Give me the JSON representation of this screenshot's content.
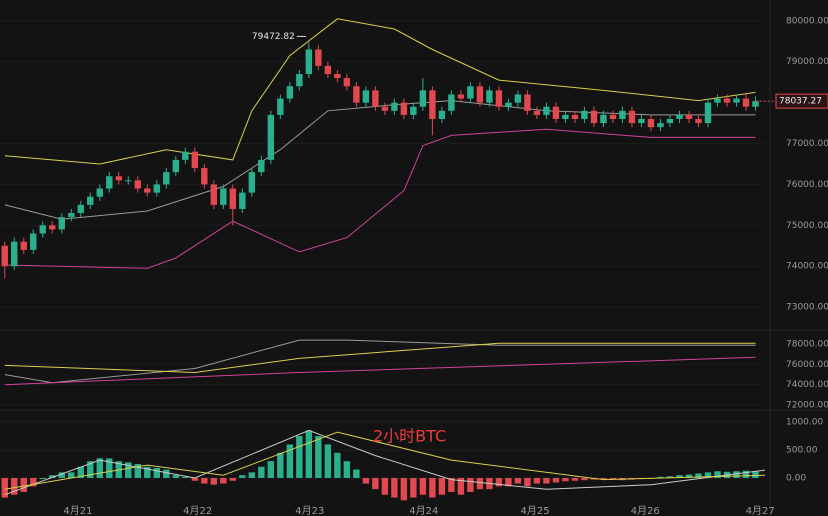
{
  "chart_data": [
    {
      "type": "candlestick",
      "xlim": [
        -0.5,
        80
      ],
      "ylim": [
        72440,
        80510
      ],
      "yticks": [
        {
          "value": 80000,
          "label": "80000.00"
        },
        {
          "value": 79000,
          "label": "79000.00"
        },
        {
          "value": 77000,
          "label": "77000.00"
        },
        {
          "value": 76000,
          "label": "76000.00"
        },
        {
          "value": 75000,
          "label": "75000.00"
        },
        {
          "value": 74000,
          "label": "74000.00"
        },
        {
          "value": 73000,
          "label": "73000.00"
        }
      ],
      "up_color": "#2bb08e",
      "down_color": "#e2484f",
      "open": [
        74500,
        74000,
        74600,
        74400,
        74800,
        75000,
        74900,
        75200,
        75300,
        75500,
        75700,
        75900,
        76200,
        76100,
        76100,
        75900,
        75800,
        76000,
        76300,
        76600,
        76800,
        76400,
        76000,
        75500,
        75900,
        75400,
        75800,
        76300,
        76600,
        77700,
        78100,
        78400,
        78700,
        79300,
        78900,
        78700,
        78600,
        78400,
        78000,
        78300,
        77900,
        77800,
        78000,
        77700,
        77900,
        78300,
        77600,
        77800,
        78200,
        78100,
        78400,
        78000,
        78300,
        77900,
        78000,
        78200,
        77800,
        77700,
        77900,
        77600,
        77700,
        77600,
        77800,
        77500,
        77700,
        77600,
        77800,
        77500,
        77600,
        77400,
        77500,
        77600,
        77700,
        77600,
        77500,
        78000,
        78100,
        78000,
        78100,
        77900
      ],
      "high": [
        74600,
        74700,
        74700,
        74900,
        75100,
        75100,
        75300,
        75400,
        75600,
        75800,
        76000,
        76300,
        76300,
        76200,
        76200,
        76000,
        76100,
        76400,
        76700,
        76900,
        76900,
        76500,
        76100,
        76000,
        76000,
        75900,
        76400,
        76700,
        77800,
        78200,
        78500,
        78800,
        79472.82,
        79400,
        79000,
        78800,
        78700,
        78500,
        78400,
        78400,
        78000,
        78100,
        78100,
        78000,
        78600,
        78400,
        77900,
        78300,
        78300,
        78500,
        78500,
        78400,
        78400,
        78100,
        78300,
        78300,
        77900,
        78000,
        78000,
        77800,
        77800,
        77900,
        77900,
        77800,
        77800,
        77900,
        77900,
        77700,
        77700,
        77600,
        77700,
        77800,
        77800,
        77700,
        78100,
        78200,
        78200,
        78200,
        78200,
        78150
      ],
      "low": [
        73700,
        73900,
        74300,
        74300,
        74700,
        74800,
        74800,
        75100,
        75200,
        75400,
        75600,
        75800,
        76000,
        76000,
        75800,
        75700,
        75700,
        75900,
        76200,
        76500,
        76300,
        75900,
        75400,
        75400,
        75000,
        75300,
        75700,
        76200,
        76500,
        77600,
        78000,
        78300,
        78600,
        78800,
        78600,
        78500,
        78300,
        77900,
        77900,
        77800,
        77700,
        77700,
        77600,
        77600,
        77800,
        77200,
        77500,
        77700,
        78000,
        78000,
        77900,
        77900,
        77800,
        77800,
        77900,
        77700,
        77600,
        77600,
        77500,
        77500,
        77500,
        77500,
        77400,
        77400,
        77500,
        77500,
        77400,
        77400,
        77300,
        77300,
        77400,
        77500,
        77500,
        77400,
        77400,
        77900,
        77900,
        77900,
        77800,
        77800
      ],
      "close": [
        74000,
        74600,
        74400,
        74800,
        75000,
        74900,
        75200,
        75300,
        75500,
        75700,
        75900,
        76200,
        76100,
        76100,
        75900,
        75800,
        76000,
        76300,
        76600,
        76800,
        76400,
        76000,
        75500,
        75900,
        75400,
        75800,
        76300,
        76600,
        77700,
        78100,
        78400,
        78700,
        79300,
        78900,
        78700,
        78600,
        78400,
        78000,
        78300,
        77900,
        77800,
        78000,
        77700,
        77900,
        78300,
        77600,
        77800,
        78200,
        78100,
        78400,
        78000,
        78300,
        77900,
        78000,
        78200,
        77800,
        77700,
        77900,
        77600,
        77700,
        77600,
        77800,
        77500,
        77700,
        77600,
        77800,
        77500,
        77600,
        77400,
        77500,
        77600,
        77700,
        77600,
        77500,
        78000,
        78100,
        78000,
        78100,
        77900,
        78037.27
      ],
      "series": [
        {
          "color": "#d8d24a",
          "x": [
            0,
            10,
            17,
            24,
            26,
            30,
            35,
            41,
            45,
            52,
            63,
            73,
            79
          ],
          "values": [
            76700,
            76500,
            76850,
            76600,
            77800,
            79150,
            80050,
            79800,
            79300,
            78550,
            78300,
            78050,
            78250
          ]
        },
        {
          "color": "#9a9a9a",
          "x": [
            0,
            6,
            15,
            23,
            29,
            34,
            41,
            47,
            57,
            68,
            79
          ],
          "values": [
            75500,
            75150,
            75350,
            75950,
            76850,
            77800,
            77950,
            78050,
            77800,
            77700,
            77700
          ]
        },
        {
          "color": "#d0449a",
          "x": [
            0,
            15,
            18,
            24,
            31,
            36,
            42,
            44,
            47,
            57,
            68,
            79
          ],
          "values": [
            74030,
            73950,
            74200,
            75100,
            74350,
            74700,
            75850,
            76950,
            77200,
            77350,
            77150,
            77150
          ]
        }
      ]
    },
    {
      "type": "line",
      "ylim": [
        71500,
        79400
      ],
      "yticks": [
        {
          "value": 78000,
          "label": "78000.00"
        },
        {
          "value": 76000,
          "label": "76000.00"
        },
        {
          "value": 74000,
          "label": "74000.00"
        },
        {
          "value": 72000,
          "label": "72000.00"
        }
      ],
      "series": [
        {
          "color": "#9a9a9a",
          "x": [
            0,
            5,
            20,
            31,
            36,
            52,
            79
          ],
          "values": [
            75000,
            74200,
            75600,
            78400,
            78400,
            77900,
            77900
          ]
        },
        {
          "color": "#d8d24a",
          "x": [
            0,
            20,
            31,
            52,
            79
          ],
          "values": [
            75900,
            75200,
            76600,
            78100,
            78100
          ]
        },
        {
          "color": "#d0449a",
          "x": [
            0,
            31,
            79
          ],
          "values": [
            74000,
            75200,
            76700
          ]
        }
      ]
    },
    {
      "type": "bar",
      "ylim": [
        -680,
        1215
      ],
      "yticks": [
        {
          "value": 1000,
          "label": "1000.00"
        },
        {
          "value": 500,
          "label": "500.00"
        },
        {
          "value": 0,
          "label": "0.00"
        }
      ],
      "xticks": [
        {
          "value": 7.7,
          "label": "4月21"
        },
        {
          "value": 20.3,
          "label": "4月22"
        },
        {
          "value": 32.1,
          "label": "4月23"
        },
        {
          "value": 44.1,
          "label": "4月24"
        },
        {
          "value": 55.8,
          "label": "4月25"
        },
        {
          "value": 67.4,
          "label": "4月26"
        },
        {
          "value": 79.5,
          "label": "4月27"
        }
      ],
      "annotation": "2小时BTC",
      "up_color": "#2bb08e",
      "down_color": "#e2484f",
      "values": [
        -350,
        -300,
        -250,
        -150,
        0,
        50,
        100,
        100,
        200,
        300,
        350,
        350,
        300,
        280,
        250,
        200,
        180,
        150,
        50,
        20,
        -50,
        -100,
        -120,
        -100,
        -50,
        50,
        100,
        200,
        300,
        450,
        600,
        750,
        850,
        750,
        600,
        450,
        300,
        150,
        -100,
        -200,
        -300,
        -350,
        -400,
        -350,
        -300,
        -350,
        -300,
        -250,
        -300,
        -250,
        -200,
        -200,
        -150,
        -150,
        -100,
        -150,
        -100,
        -100,
        -80,
        -60,
        -50,
        -40,
        -30,
        -20,
        -30,
        -40,
        -30,
        -20,
        -10,
        20,
        30,
        50,
        60,
        80,
        100,
        120,
        110,
        120,
        130,
        120
      ],
      "series": [
        {
          "color": "#cccccc",
          "x": [
            0,
            10,
            20,
            32,
            39,
            47,
            57,
            68,
            80
          ],
          "values": [
            -300,
            320,
            0,
            850,
            400,
            -30,
            -200,
            -120,
            140
          ]
        },
        {
          "color": "#d8d24a",
          "x": [
            0,
            15,
            23,
            35,
            47,
            63,
            80
          ],
          "values": [
            -200,
            230,
            50,
            820,
            320,
            -30,
            50
          ]
        }
      ]
    }
  ]
}
